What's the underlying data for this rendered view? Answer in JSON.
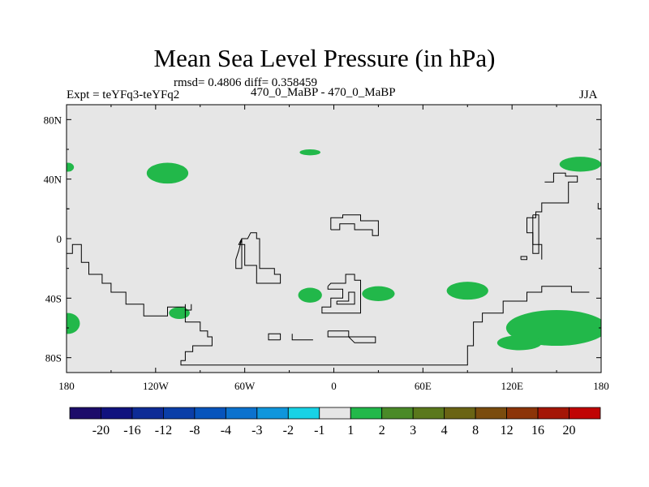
{
  "header": {
    "title": "Mean Sea Level Pressure (in hPa)",
    "stats": "rmsd= 0.4806 diff= 0.358459",
    "left_label": "Expt = teYFq3-teYFq2",
    "center_label": "470_0_MaBP - 470_0_MaBP",
    "right_label": "JJA"
  },
  "chart_data": {
    "type": "heatmap",
    "title": "Mean Sea Level Pressure (in hPa)",
    "xlim": [
      -180,
      180
    ],
    "ylim": [
      -90,
      90
    ],
    "x_ticks": [
      {
        "value": -180,
        "label": "180"
      },
      {
        "value": -120,
        "label": "120W"
      },
      {
        "value": -60,
        "label": "60W"
      },
      {
        "value": 0,
        "label": "0"
      },
      {
        "value": 60,
        "label": "60E"
      },
      {
        "value": 120,
        "label": "120E"
      },
      {
        "value": 180,
        "label": "180"
      }
    ],
    "y_ticks": [
      {
        "value": 80,
        "label": "80N"
      },
      {
        "value": 40,
        "label": "40N"
      },
      {
        "value": 0,
        "label": "0"
      },
      {
        "value": -40,
        "label": "40S"
      },
      {
        "value": -80,
        "label": "80S"
      }
    ],
    "background_color": "#e6e6e6",
    "positive_color": "#22b84a",
    "colorbar": {
      "colors": [
        "#1c0c6a",
        "#10127e",
        "#0e2b96",
        "#0a3ea8",
        "#0754bc",
        "#0c72ce",
        "#0f96dc",
        "#18d2e6",
        "#e6e6e6",
        "#22b84a",
        "#4a8a28",
        "#5a781c",
        "#6a6414",
        "#7a4c0e",
        "#8c3408",
        "#a41606",
        "#c00404"
      ],
      "labels": [
        "-20",
        "-16",
        "-12",
        "-8",
        "-4",
        "-3",
        "-2",
        "-1",
        "1",
        "2",
        "3",
        "4",
        "8",
        "12",
        "16",
        "20"
      ]
    },
    "positive_regions": [
      {
        "lon": -179,
        "lat": 48,
        "rlon": 4,
        "rlat": 3
      },
      {
        "lon": -112,
        "lat": 44,
        "rlon": 14,
        "rlat": 7
      },
      {
        "lon": -16,
        "lat": 58,
        "rlon": 7,
        "rlat": 2
      },
      {
        "lon": 166,
        "lat": 50,
        "rlon": 14,
        "rlat": 5
      },
      {
        "lon": -16,
        "lat": -38,
        "rlon": 8,
        "rlat": 5
      },
      {
        "lon": 30,
        "lat": -37,
        "rlon": 11,
        "rlat": 5
      },
      {
        "lon": 90,
        "lat": -35,
        "rlon": 14,
        "rlat": 6
      },
      {
        "lon": -179,
        "lat": -57,
        "rlon": 8,
        "rlat": 7
      },
      {
        "lon": -104,
        "lat": -50,
        "rlon": 7,
        "rlat": 4
      },
      {
        "lon": 150,
        "lat": -60,
        "rlon": 34,
        "rlat": 12
      },
      {
        "lon": 125,
        "lat": -70,
        "rlon": 15,
        "rlat": 5
      }
    ],
    "land_outline_polylines": [
      [
        [
          -180,
          -40
        ],
        [
          -180,
          -10
        ],
        [
          -176,
          -10
        ],
        [
          -176,
          -4
        ],
        [
          -170,
          -4
        ],
        [
          -170,
          -16
        ],
        [
          -165,
          -16
        ],
        [
          -165,
          -24
        ],
        [
          -156,
          -24
        ],
        [
          -156,
          -30
        ],
        [
          -150,
          -30
        ],
        [
          -150,
          -36
        ],
        [
          -140,
          -36
        ],
        [
          -140,
          -44
        ],
        [
          -128,
          -44
        ],
        [
          -128,
          -52
        ],
        [
          -112,
          -52
        ],
        [
          -112,
          -46
        ],
        [
          -100,
          -46
        ],
        [
          -100,
          -56
        ],
        [
          -90,
          -56
        ],
        [
          -90,
          -62
        ],
        [
          -85,
          -62
        ],
        [
          -85,
          -66
        ],
        [
          -82,
          -66
        ],
        [
          -82,
          -72
        ],
        [
          -95,
          -72
        ],
        [
          -95,
          -76
        ],
        [
          -100,
          -76
        ],
        [
          -100,
          -82
        ],
        [
          -103,
          -82
        ],
        [
          -103,
          -85
        ],
        [
          0,
          -85
        ],
        [
          90,
          -85
        ],
        [
          90,
          -72
        ],
        [
          94,
          -72
        ],
        [
          94,
          -56
        ],
        [
          100,
          -56
        ],
        [
          100,
          -50
        ],
        [
          114,
          -50
        ],
        [
          114,
          -42
        ],
        [
          130,
          -42
        ],
        [
          130,
          -36
        ],
        [
          140,
          -36
        ],
        [
          140,
          -32
        ],
        [
          160,
          -32
        ],
        [
          160,
          -36
        ],
        [
          172,
          -36
        ]
      ],
      [
        [
          -180,
          40
        ],
        [
          -180,
          20
        ],
        [
          -178,
          20
        ]
      ],
      [
        [
          -62,
          0
        ],
        [
          -64,
          -4
        ],
        [
          -60,
          -4
        ],
        [
          -60,
          -18
        ],
        [
          -52,
          -18
        ],
        [
          -52,
          -30
        ],
        [
          -36,
          -30
        ],
        [
          -36,
          -24
        ],
        [
          -40,
          -24
        ],
        [
          -40,
          -20
        ],
        [
          -50,
          -20
        ],
        [
          -50,
          -12
        ],
        [
          -50,
          0
        ],
        [
          -52,
          0
        ],
        [
          -52,
          4
        ],
        [
          -56,
          4
        ],
        [
          -58,
          0
        ],
        [
          -62,
          0
        ],
        [
          -64,
          -8
        ],
        [
          -66,
          -14
        ],
        [
          -66,
          -20
        ],
        [
          -62,
          -20
        ],
        [
          -62,
          -6
        ],
        [
          -62,
          0
        ]
      ],
      [
        [
          -2,
          6
        ],
        [
          -2,
          14
        ],
        [
          6,
          14
        ],
        [
          6,
          16
        ],
        [
          18,
          16
        ],
        [
          18,
          12
        ],
        [
          30,
          12
        ],
        [
          30,
          2
        ],
        [
          26,
          2
        ],
        [
          26,
          6
        ],
        [
          14,
          6
        ],
        [
          14,
          10
        ],
        [
          4,
          10
        ],
        [
          4,
          6
        ],
        [
          -2,
          6
        ]
      ],
      [
        [
          -4,
          -32
        ],
        [
          -2,
          -30
        ],
        [
          8,
          -30
        ],
        [
          8,
          -24
        ],
        [
          14,
          -24
        ],
        [
          14,
          -28
        ],
        [
          18,
          -28
        ],
        [
          18,
          -50
        ],
        [
          -8,
          -50
        ],
        [
          -8,
          -46
        ],
        [
          -2,
          -46
        ],
        [
          -2,
          -40
        ],
        [
          6,
          -40
        ],
        [
          6,
          -34
        ],
        [
          -4,
          -34
        ],
        [
          -4,
          -32
        ]
      ],
      [
        [
          2,
          -42
        ],
        [
          10,
          -42
        ],
        [
          10,
          -36
        ],
        [
          14,
          -36
        ],
        [
          14,
          -44
        ],
        [
          2,
          -44
        ],
        [
          2,
          -42
        ]
      ],
      [
        [
          -100,
          -44
        ],
        [
          -100,
          -48
        ],
        [
          -96,
          -48
        ],
        [
          -96,
          -44
        ]
      ],
      [
        [
          140,
          -14
        ],
        [
          140,
          -4
        ],
        [
          134,
          -4
        ],
        [
          134,
          4
        ],
        [
          130,
          4
        ],
        [
          130,
          14
        ],
        [
          136,
          14
        ],
        [
          136,
          18
        ],
        [
          140,
          18
        ],
        [
          140,
          24
        ],
        [
          158,
          24
        ],
        [
          158,
          38
        ],
        [
          164,
          38
        ],
        [
          164,
          42
        ],
        [
          156,
          42
        ],
        [
          156,
          44
        ],
        [
          148,
          44
        ],
        [
          148,
          38
        ],
        [
          142,
          38
        ]
      ],
      [
        [
          126,
          -14
        ],
        [
          126,
          -12
        ],
        [
          130,
          -12
        ],
        [
          130,
          -14
        ],
        [
          126,
          -14
        ]
      ],
      [
        [
          134,
          16
        ],
        [
          134,
          -10
        ],
        [
          138,
          -10
        ],
        [
          138,
          16
        ],
        [
          134,
          16
        ]
      ],
      [
        [
          178,
          24
        ],
        [
          178,
          20
        ],
        [
          180,
          20
        ]
      ],
      [
        [
          -36,
          -68
        ],
        [
          -36,
          -64
        ],
        [
          -44,
          -64
        ],
        [
          -44,
          -68
        ],
        [
          -36,
          -68
        ]
      ],
      [
        [
          -28,
          -64
        ],
        [
          -28,
          -68
        ],
        [
          -14,
          -68
        ]
      ],
      [
        [
          -4,
          -62
        ],
        [
          10,
          -62
        ],
        [
          10,
          -66
        ],
        [
          28,
          -66
        ],
        [
          28,
          -70
        ],
        [
          14,
          -70
        ],
        [
          10,
          -66
        ],
        [
          -4,
          -66
        ],
        [
          -4,
          -62
        ]
      ]
    ]
  }
}
